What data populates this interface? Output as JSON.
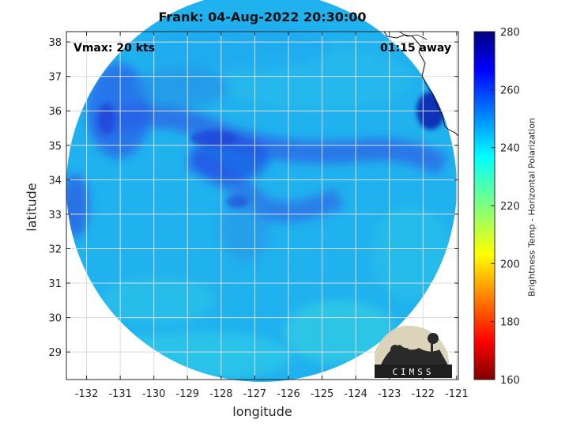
{
  "title": "Frank: 04-Aug-2022 20:30:00",
  "annotations": {
    "vmax": "Vmax: 20 kts",
    "away": "01:15 away"
  },
  "logo_text": "CIMSS",
  "axes": {
    "xlabel": "longitude",
    "ylabel": "latitude",
    "x_ticks": [
      -132,
      -131,
      -130,
      -129,
      -128,
      -127,
      -126,
      -125,
      -124,
      -123,
      -122,
      -121
    ],
    "y_ticks": [
      29,
      30,
      31,
      32,
      33,
      34,
      35,
      36,
      37,
      38
    ],
    "xlim": [
      -132.6,
      -120.95
    ],
    "ylim": [
      28.2,
      38.3
    ],
    "grid": true
  },
  "colorbar": {
    "label": "Brightness Temp - Horizontal Polarization",
    "ticks": [
      160,
      180,
      200,
      220,
      240,
      260,
      280
    ],
    "range": [
      160,
      280
    ],
    "colormap": "jet"
  },
  "colors": {
    "background_field": "#21b4ef",
    "cold_features": "#2a5ce8",
    "warm_patches": "#3fcde3",
    "coast_hot_spot": "#1032b8"
  }
}
